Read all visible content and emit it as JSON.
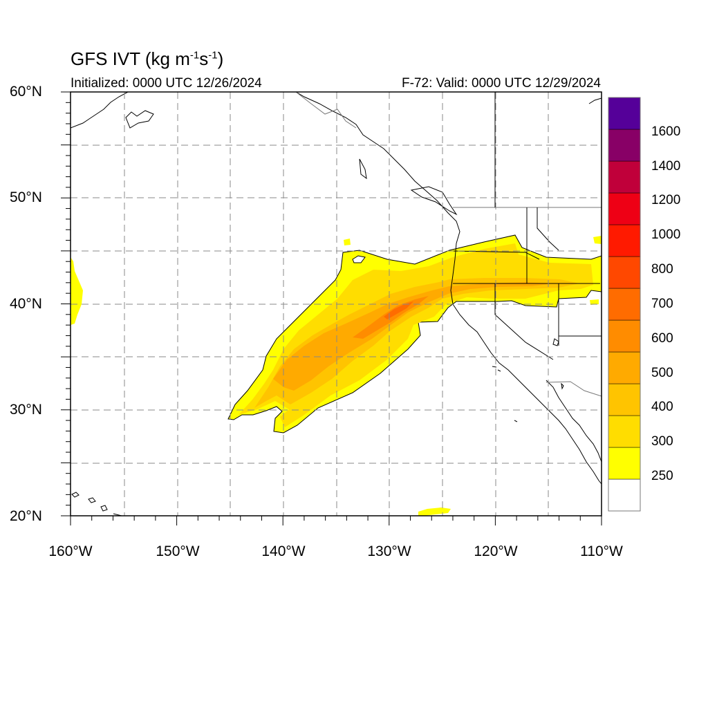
{
  "title": {
    "main": "GFS IVT (kg m",
    "unit_exp1": "-1",
    "unit_mid": "s",
    "unit_exp2": "-1",
    "unit_close": ")"
  },
  "subtitle": {
    "initialized": "Initialized: 0000 UTC 12/26/2024",
    "valid": "F-72: Valid: 0000 UTC 12/29/2024"
  },
  "axes": {
    "lat_labels": [
      "60°N",
      "50°N",
      "40°N",
      "30°N",
      "20°N"
    ],
    "lon_labels": [
      "160°W",
      "150°W",
      "140°W",
      "130°W",
      "120°W",
      "110°W"
    ],
    "lat_range": [
      20,
      60
    ],
    "lon_range": [
      -160,
      -110
    ],
    "grid": "dashed every 5°"
  },
  "colorbar": {
    "levels": [
      "250",
      "300",
      "400",
      "500",
      "600",
      "700",
      "800",
      "1000",
      "1200",
      "1400",
      "1600"
    ],
    "colors": [
      "#ffffff",
      "#ffff00",
      "#ffdd00",
      "#ffc400",
      "#ffaa00",
      "#ff8c00",
      "#ff6c00",
      "#ff4800",
      "#ff1a00",
      "#ee0015",
      "#c0003a",
      "#880066",
      "#550099"
    ]
  },
  "chart_data": {
    "type": "heatmap",
    "variable": "IVT",
    "features": [
      {
        "name": "main-plume",
        "level_min": 250,
        "peak_level": "600-700",
        "peak_near": {
          "lon": -129,
          "lat": 39.5
        },
        "extent_lon": [
          -145,
          -110
        ],
        "extent_lat": [
          28,
          46
        ]
      },
      {
        "name": "hawaii-edge-patch",
        "level_min": 250,
        "extent_lon": [
          -160,
          -159
        ],
        "extent_lat": [
          38,
          44
        ]
      },
      {
        "name": "southern-patch",
        "level_min": 250,
        "extent_lon": [
          -127,
          -124
        ],
        "extent_lat": [
          20,
          20.5
        ]
      }
    ]
  }
}
